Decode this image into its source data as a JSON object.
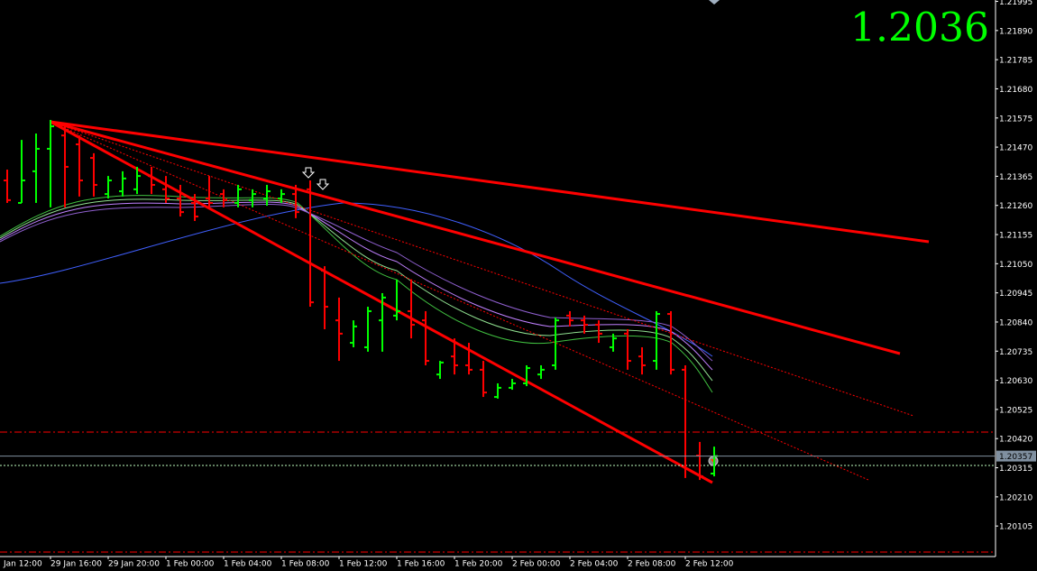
{
  "chart_data": {
    "type": "ohlc",
    "last_price_display": "1.2036",
    "current_price": 1.20357,
    "up_color": "#00ff00",
    "down_color": "#ff0000",
    "categories": [
      "Jan 12:00",
      null,
      null,
      null,
      "29 Jan 16:00",
      null,
      null,
      null,
      "29 Jan 20:00",
      null,
      null,
      null,
      "1 Feb 00:00",
      null,
      null,
      null,
      "1 Feb 04:00",
      null,
      null,
      null,
      "1 Feb 08:00",
      null,
      null,
      null,
      "1 Feb 12:00",
      null,
      null,
      null,
      "1 Feb 16:00",
      null,
      null,
      null,
      "1 Feb 20:00",
      null,
      null,
      null,
      "2 Feb 00:00",
      null,
      null,
      null,
      "2 Feb 04:00",
      null,
      null,
      null,
      "2 Feb 08:00",
      null,
      null,
      null,
      "2 Feb 12:00",
      null,
      null
    ],
    "open": [
      null,
      1.2135,
      1.21269,
      1.21383,
      1.21464,
      1.21512,
      1.2148,
      1.21431,
      1.21301,
      1.21311,
      1.21318,
      1.21366,
      1.21318,
      1.21285,
      1.21269,
      1.21285,
      1.21301,
      1.21269,
      1.21279,
      1.21285,
      1.21285,
      1.21301,
      1.21318,
      1.21025,
      1.20846,
      1.20765,
      1.20749,
      1.20846,
      1.20863,
      1.20879,
      1.20846,
      1.20651,
      1.20716,
      1.20684,
      1.20668,
      1.2057,
      1.20603,
      1.20619,
      1.20651,
      1.20684,
      1.20863,
      1.20846,
      1.2083,
      1.20749,
      1.20798,
      1.20716,
      1.207,
      1.20869,
      1.20668,
      1.20359,
      1.20294
    ],
    "high": [
      null,
      1.21389,
      1.21496,
      1.21519,
      1.21568,
      1.21545,
      1.21512,
      1.21448,
      1.21366,
      1.21383,
      1.21399,
      1.21399,
      1.21366,
      1.21334,
      1.21301,
      1.21366,
      1.21318,
      1.21334,
      1.21318,
      1.21334,
      1.21318,
      1.21334,
      1.2135,
      1.21041,
      1.20928,
      1.20846,
      1.20895,
      1.20944,
      1.20993,
      1.20993,
      1.20879,
      1.207,
      1.20781,
      1.20765,
      1.207,
      1.20619,
      1.20635,
      1.20684,
      1.20684,
      1.20856,
      1.20879,
      1.20863,
      1.20846,
      1.20798,
      1.20814,
      1.20749,
      1.20879,
      1.20879,
      1.20684,
      1.20408,
      1.20391
    ],
    "low": [
      null,
      1.21269,
      1.21269,
      1.21269,
      1.21253,
      1.21253,
      1.21292,
      1.21292,
      1.21285,
      1.21292,
      1.21301,
      1.21301,
      1.21269,
      1.2122,
      1.21204,
      1.21253,
      1.21253,
      1.21253,
      1.21253,
      1.21259,
      1.21269,
      1.21214,
      1.20895,
      1.20814,
      1.207,
      1.20749,
      1.20733,
      1.20733,
      1.20846,
      1.20781,
      1.20684,
      1.20635,
      1.20651,
      1.20651,
      1.2057,
      1.20564,
      1.20596,
      1.20609,
      1.20635,
      1.20668,
      1.20824,
      1.20798,
      1.20765,
      1.20733,
      1.20668,
      1.20651,
      1.20668,
      1.20651,
      1.20278,
      1.20271,
      1.20284
    ],
    "close": [
      null,
      1.21279,
      1.2135,
      1.21464,
      1.21545,
      1.21399,
      1.2135,
      1.21334,
      1.2135,
      1.21357,
      1.21366,
      1.21334,
      1.21285,
      1.21236,
      1.2122,
      1.21269,
      1.21279,
      1.21318,
      1.21301,
      1.21311,
      1.21301,
      1.21236,
      1.20911,
      1.20895,
      1.20798,
      1.20824,
      1.20879,
      1.20928,
      1.20879,
      1.2083,
      1.207,
      1.20694,
      1.20684,
      1.20668,
      1.20586,
      1.20603,
      1.20619,
      1.20674,
      1.20668,
      1.20846,
      1.20846,
      1.2083,
      1.20798,
      1.20781,
      1.207,
      1.20684,
      1.20869,
      1.20668,
      1.2031,
      1.20284,
      1.20357
    ],
    "ylim": [
      1.19995,
      1.22
    ],
    "yticks": [
      1.21995,
      {
        "value": 1.2189,
        "label": "1.21890"
      },
      1.21785,
      {
        "value": 1.2168,
        "label": "1.21680"
      },
      1.21575,
      {
        "value": 1.2147,
        "label": "1.21470"
      },
      1.21365,
      {
        "value": 1.2126,
        "label": "1.21260"
      },
      1.21155,
      {
        "value": 1.2105,
        "label": "1.21050"
      },
      1.20945,
      {
        "value": 1.2084,
        "label": "1.20840"
      },
      1.20735,
      {
        "value": 1.2063,
        "label": "1.20630"
      },
      1.20525,
      {
        "value": 1.2042,
        "label": "1.20420"
      },
      1.20315,
      {
        "value": 1.2021,
        "label": "1.20210"
      },
      1.20105
    ],
    "grid": false
  }
}
